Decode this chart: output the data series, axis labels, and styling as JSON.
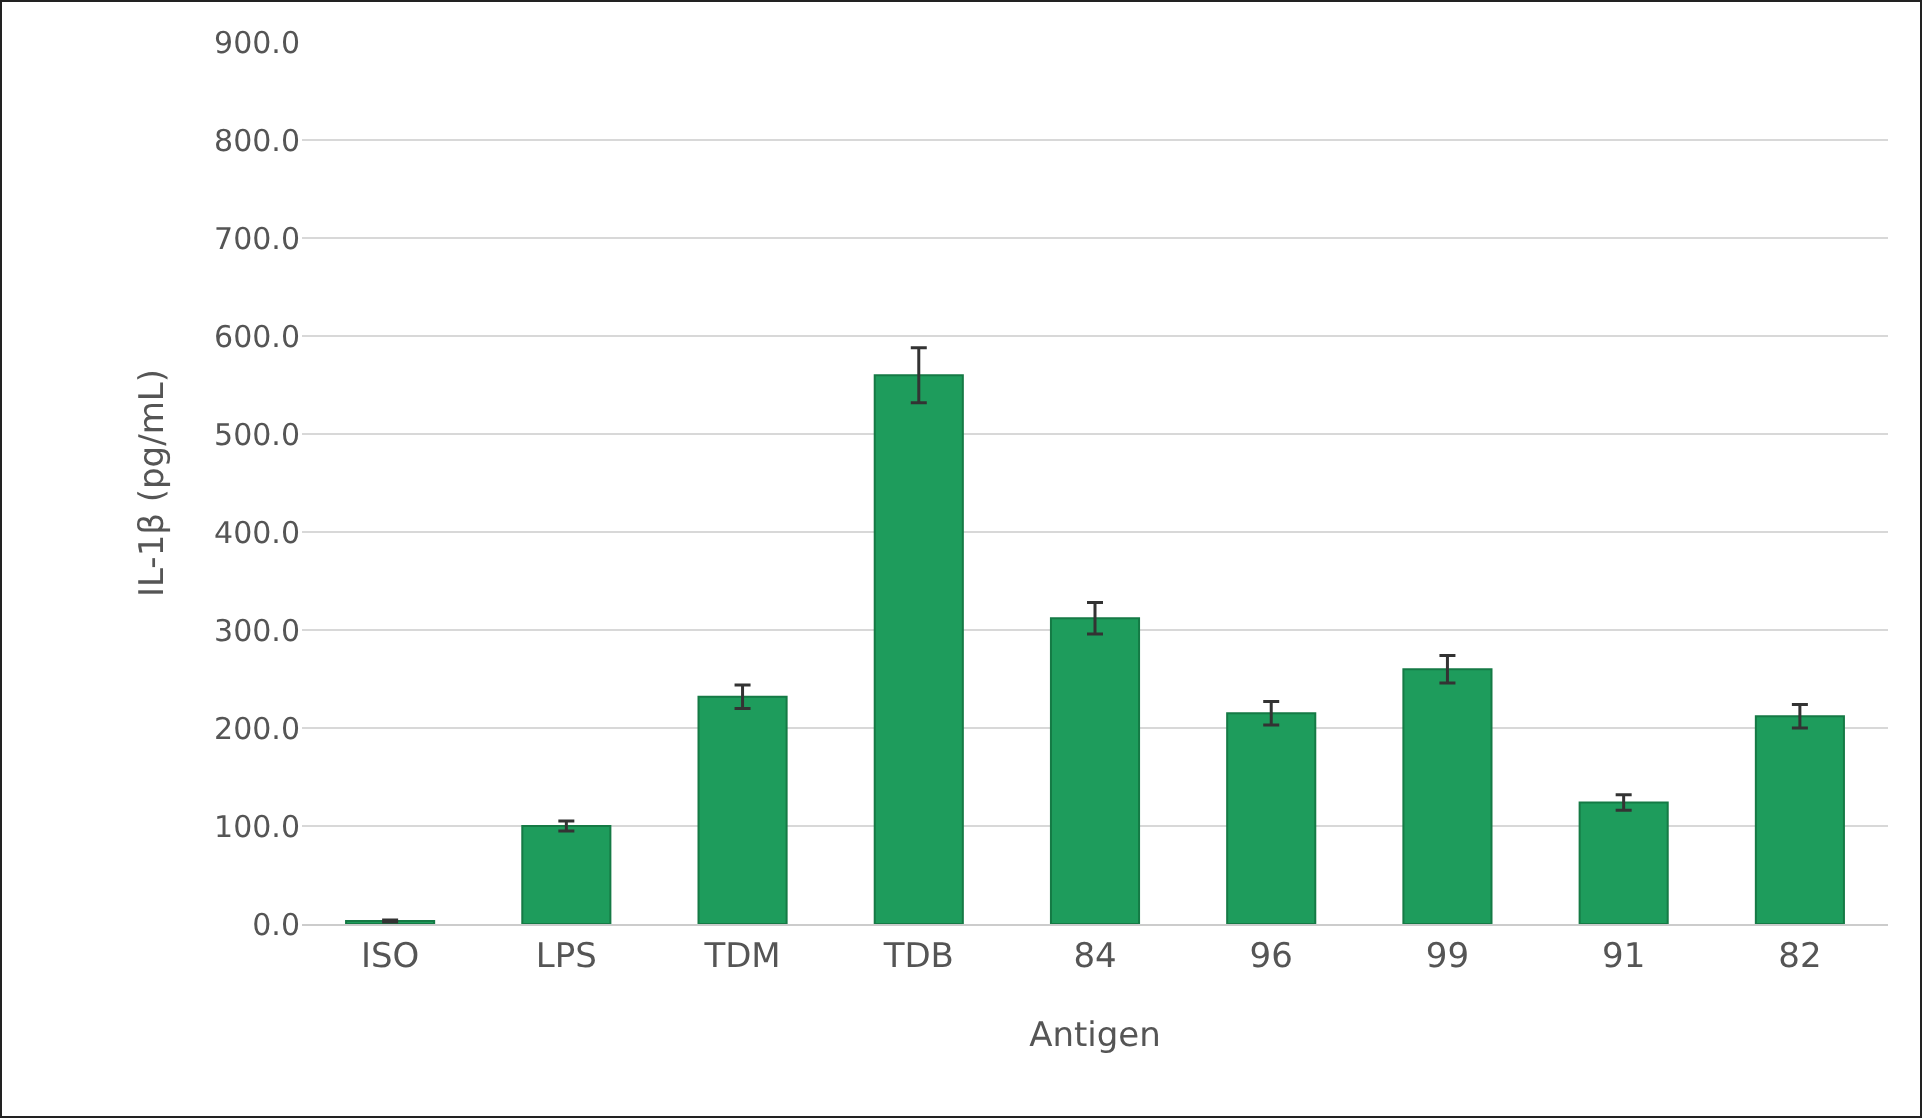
{
  "chart_data": {
    "type": "bar",
    "xlabel": "Antigen",
    "ylabel": "IL-1β (pg/mL)",
    "categories": [
      "ISO",
      "LPS",
      "TDM",
      "TDB",
      "84",
      "96",
      "99",
      "91",
      "82"
    ],
    "values": [
      3,
      100,
      232,
      560,
      312,
      215,
      260,
      124,
      212
    ],
    "errors": [
      1,
      5,
      12,
      28,
      16,
      12,
      14,
      8,
      12
    ],
    "color": "#1e9c5c",
    "ylim": [
      0,
      900
    ],
    "yticks": [
      {
        "value": 0,
        "label": "0.0"
      },
      {
        "value": 100,
        "label": "100.0"
      },
      {
        "value": 200,
        "label": "200.0"
      },
      {
        "value": 300,
        "label": "300.0"
      },
      {
        "value": 400,
        "label": "400.0"
      },
      {
        "value": 500,
        "label": "500.0"
      },
      {
        "value": 600,
        "label": "600.0"
      },
      {
        "value": 700,
        "label": "700.0"
      },
      {
        "value": 800,
        "label": "800.0"
      },
      {
        "value": 900,
        "label": "900.0"
      }
    ],
    "grid": "y"
  }
}
